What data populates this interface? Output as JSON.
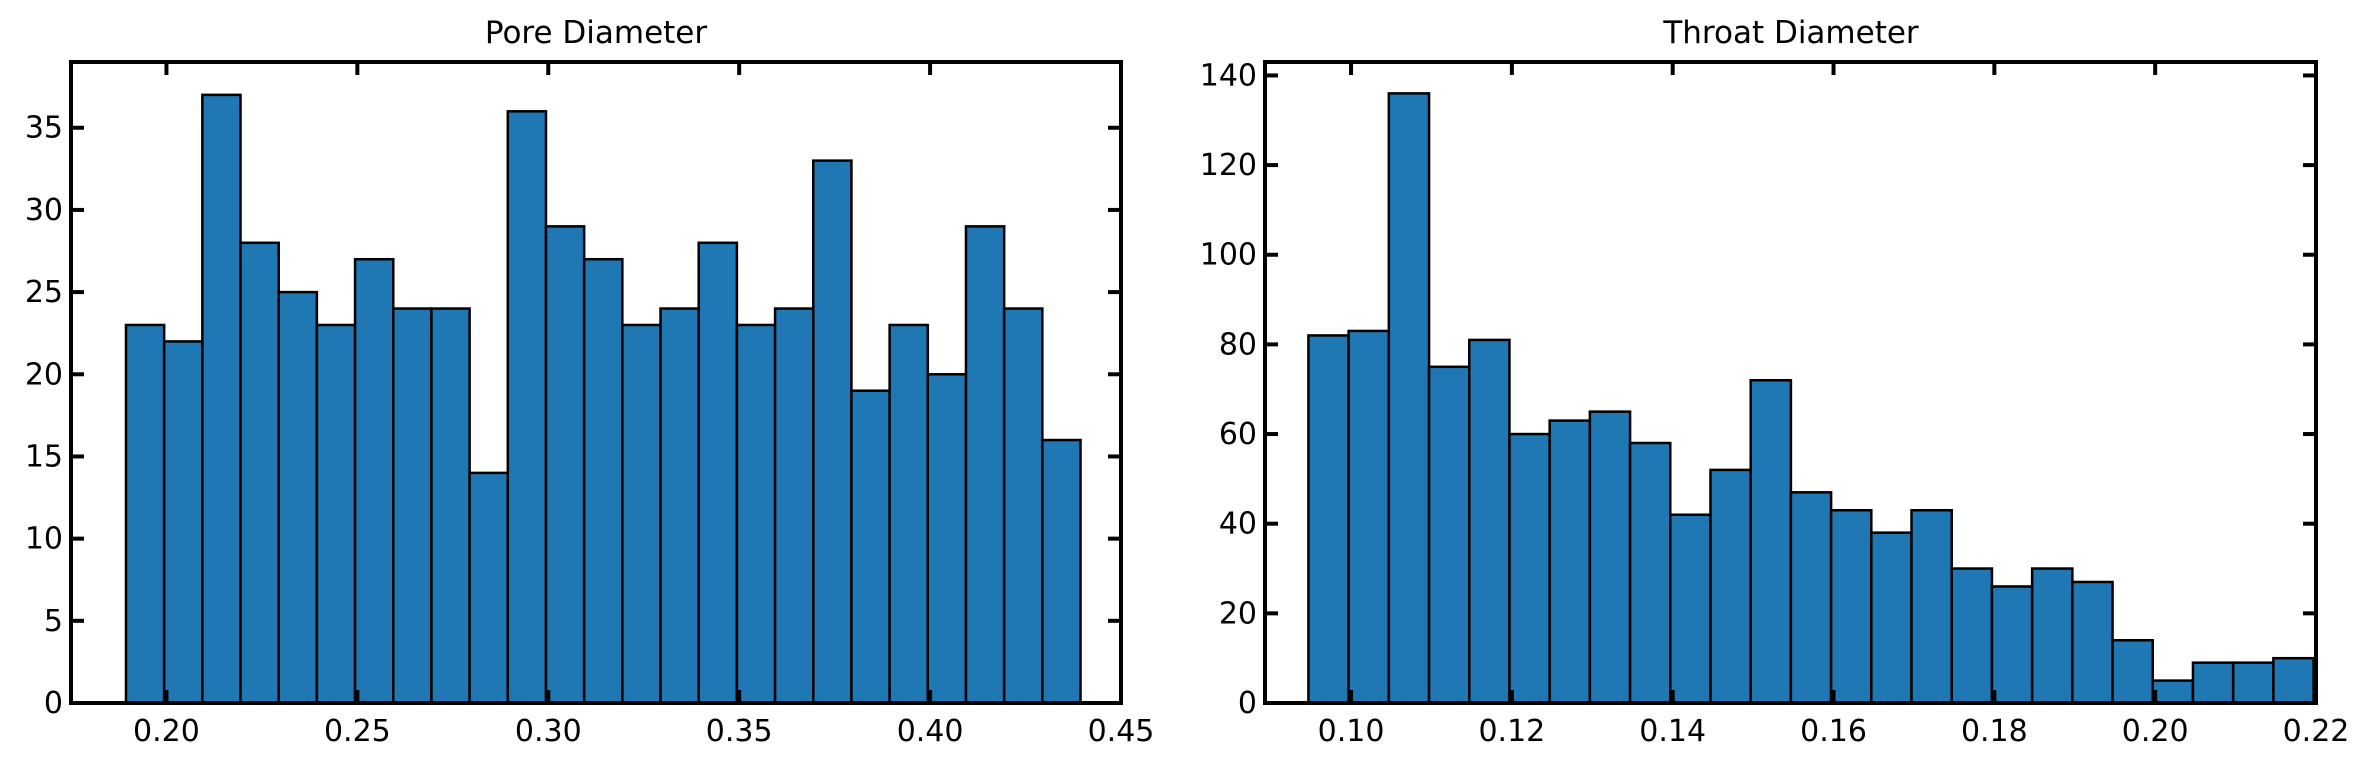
{
  "chart_data": [
    {
      "type": "bar",
      "title": "Pore Diameter",
      "xlabel": "",
      "ylabel": "",
      "xlim": [
        0.175,
        0.45
      ],
      "ylim": [
        0,
        39
      ],
      "xticks": [
        0.2,
        0.25,
        0.3,
        0.35,
        0.4,
        0.45
      ],
      "xtick_labels": [
        "0.20",
        "0.25",
        "0.30",
        "0.35",
        "0.40",
        "0.45"
      ],
      "yticks": [
        0,
        5,
        10,
        15,
        20,
        25,
        30,
        35
      ],
      "ytick_labels": [
        "0",
        "5",
        "10",
        "15",
        "20",
        "25",
        "30",
        "35"
      ],
      "bin_start": 0.1894,
      "bin_width": 0.01,
      "values": [
        23,
        22,
        37,
        28,
        25,
        23,
        27,
        24,
        24,
        14,
        36,
        29,
        27,
        23,
        24,
        28,
        23,
        24,
        33,
        19,
        23,
        20,
        29,
        24,
        16
      ],
      "bar_color": "#1f77b4",
      "edge_color": "#000000",
      "grid": false
    },
    {
      "type": "bar",
      "title": "Throat Diameter",
      "xlabel": "",
      "ylabel": "",
      "xlim": [
        0.0893,
        0.22
      ],
      "ylim": [
        0,
        143
      ],
      "xticks": [
        0.1,
        0.12,
        0.14,
        0.16,
        0.18,
        0.2,
        0.22
      ],
      "xtick_labels": [
        "0.10",
        "0.12",
        "0.14",
        "0.16",
        "0.18",
        "0.20",
        "0.22"
      ],
      "yticks": [
        0,
        20,
        40,
        60,
        80,
        100,
        120,
        140
      ],
      "ytick_labels": [
        "0",
        "20",
        "40",
        "60",
        "80",
        "100",
        "120",
        "140"
      ],
      "bin_start": 0.0947,
      "bin_width": 0.005,
      "values": [
        82,
        83,
        136,
        75,
        81,
        60,
        63,
        65,
        58,
        42,
        52,
        72,
        47,
        43,
        38,
        43,
        30,
        26,
        30,
        27,
        14,
        5,
        9,
        9,
        10
      ],
      "bar_color": "#1f77b4",
      "edge_color": "#000000",
      "grid": false
    }
  ]
}
